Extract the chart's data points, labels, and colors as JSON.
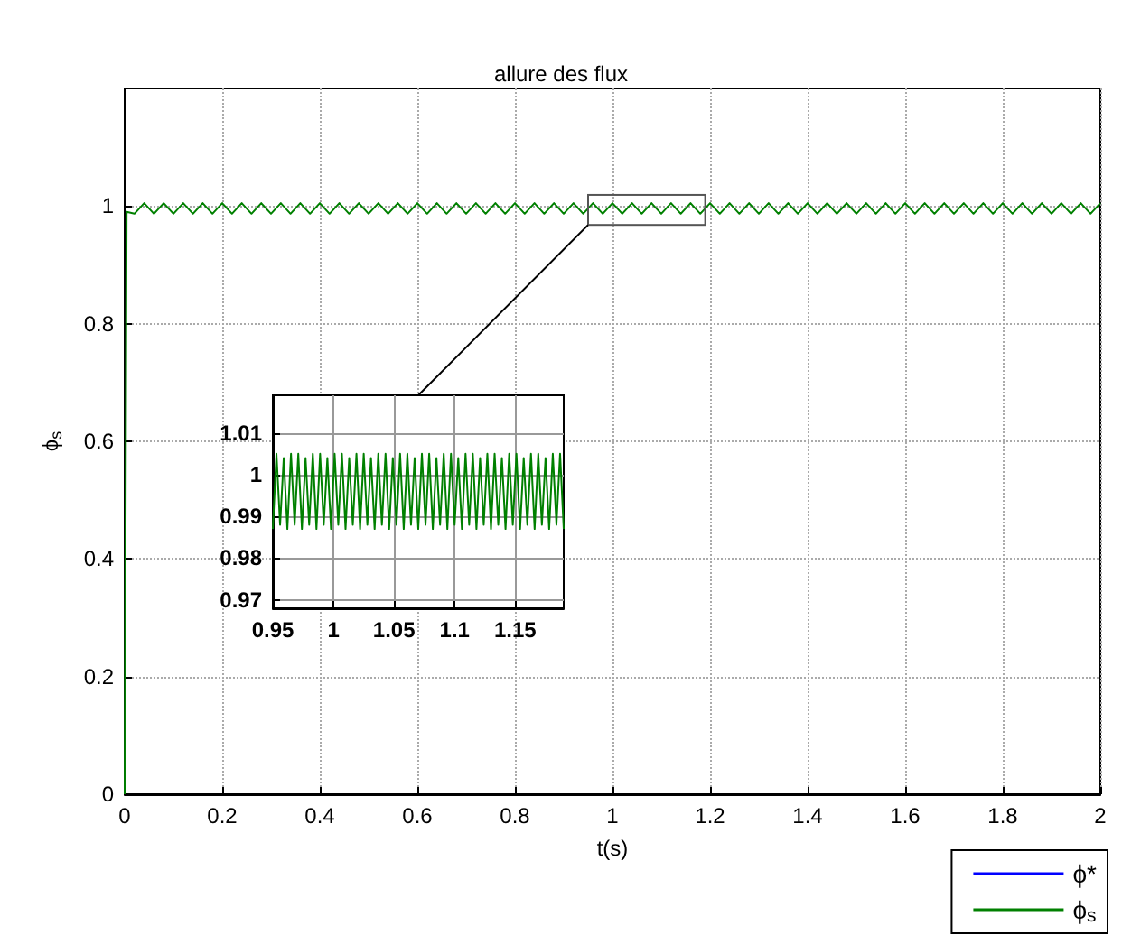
{
  "chart_data": [
    {
      "type": "line",
      "title": "allure des flux",
      "xlabel": "t(s)",
      "ylabel": "ϕ$_{s}$",
      "xlim": [
        0,
        2
      ],
      "ylim": [
        0,
        1.2
      ],
      "xticks": [
        0,
        0.2,
        0.4,
        0.6,
        0.8,
        1,
        1.2,
        1.4,
        1.6,
        1.8,
        2
      ],
      "yticks": [
        0,
        0.2,
        0.4,
        0.6,
        0.8,
        1
      ],
      "grid": true,
      "legend": "bottom right",
      "series": [
        {
          "name": "ϕ*",
          "color": "#0000ff"
        },
        {
          "name": "ϕ$_{s}$",
          "color": "#008000",
          "x": [
            0,
            0.004,
            0.02,
            0.04,
            0.06,
            0.08,
            0.1,
            0.12,
            0.14,
            0.16,
            0.18,
            0.2,
            0.22,
            0.24,
            0.26,
            0.28,
            0.3,
            0.32,
            0.34,
            0.36,
            0.38,
            0.4,
            0.42,
            0.44,
            0.46,
            0.48,
            0.5,
            0.52,
            0.54,
            0.56,
            0.58,
            0.6,
            0.62,
            0.64,
            0.66,
            0.68,
            0.7,
            0.72,
            0.74,
            0.76,
            0.78,
            0.8,
            0.82,
            0.84,
            0.86,
            0.88,
            0.9,
            0.92,
            0.94,
            0.96,
            0.98,
            1,
            1.02,
            1.04,
            1.06,
            1.08,
            1.1,
            1.12,
            1.14,
            1.16,
            1.18,
            1.2,
            1.22,
            1.24,
            1.26,
            1.28,
            1.3,
            1.32,
            1.34,
            1.36,
            1.38,
            1.4,
            1.42,
            1.44,
            1.46,
            1.48,
            1.5,
            1.52,
            1.54,
            1.56,
            1.58,
            1.6,
            1.62,
            1.64,
            1.66,
            1.68,
            1.7,
            1.72,
            1.74,
            1.76,
            1.78,
            1.8,
            1.82,
            1.84,
            1.86,
            1.88,
            1.9,
            1.92,
            1.94,
            1.96,
            1.98,
            2
          ],
          "values": [
            0,
            0.99,
            0.987,
            1.005,
            0.987,
            1.005,
            0.987,
            1.005,
            0.987,
            1.005,
            0.987,
            1.005,
            0.987,
            1.005,
            0.987,
            1.005,
            0.987,
            1.005,
            0.987,
            1.005,
            0.987,
            1.005,
            0.987,
            1.005,
            0.987,
            1.005,
            0.987,
            1.005,
            0.987,
            1.005,
            0.987,
            1.005,
            0.987,
            1.005,
            0.987,
            1.005,
            0.987,
            1.005,
            0.987,
            1.005,
            0.987,
            1.005,
            0.987,
            1.005,
            0.987,
            1.005,
            0.987,
            1.005,
            0.987,
            1.005,
            0.987,
            1.005,
            0.987,
            1.005,
            0.987,
            1.005,
            0.987,
            1.005,
            0.987,
            1.005,
            0.987,
            1.005,
            0.987,
            1.005,
            0.987,
            1.005,
            0.987,
            1.005,
            0.987,
            1.005,
            0.987,
            1.005,
            0.987,
            1.005,
            0.987,
            1.005,
            0.987,
            1.005,
            0.987,
            1.005,
            0.987,
            1.005,
            0.987,
            1.005,
            0.987,
            1.005,
            0.987,
            1.005,
            0.987,
            1.005,
            0.987,
            1.005,
            0.987,
            1.005,
            0.987,
            1.005,
            0.987,
            1.005,
            0.987,
            1.005,
            0.987,
            1.005
          ]
        }
      ]
    },
    {
      "type": "line",
      "xlim": [
        0.95,
        1.19
      ],
      "ylim": [
        0.968,
        1.019
      ],
      "xticks": [
        0.95,
        1,
        1.05,
        1.1,
        1.15
      ],
      "yticks": [
        0.97,
        0.98,
        0.99,
        1,
        1.01
      ],
      "grid": true,
      "series": [
        {
          "color": "#008000",
          "x": [
            0.95,
            0.953,
            0.956,
            0.959,
            0.962,
            0.965,
            0.968,
            0.971,
            0.974,
            0.977,
            0.98,
            0.983,
            0.986,
            0.989,
            0.992,
            0.995,
            0.998,
            1.001,
            1.004,
            1.007,
            1.01,
            1.013,
            1.016,
            1.019,
            1.022,
            1.025,
            1.028,
            1.031,
            1.034,
            1.037,
            1.04,
            1.043,
            1.046,
            1.049,
            1.052,
            1.055,
            1.058,
            1.061,
            1.064,
            1.067,
            1.07,
            1.073,
            1.076,
            1.079,
            1.082,
            1.085,
            1.088,
            1.091,
            1.094,
            1.097,
            1.1,
            1.103,
            1.106,
            1.109,
            1.112,
            1.115,
            1.118,
            1.121,
            1.124,
            1.127,
            1.13,
            1.133,
            1.136,
            1.139,
            1.142,
            1.145,
            1.148,
            1.151,
            1.154,
            1.157,
            1.16,
            1.163,
            1.166,
            1.169,
            1.172,
            1.175,
            1.178,
            1.181,
            1.184,
            1.187,
            1.19
          ],
          "values": [
            0.987,
            1.005,
            0.988,
            1.004,
            0.987,
            1.005,
            0.988,
            1.005,
            0.987,
            1.004,
            0.988,
            1.005,
            0.987,
            1.005,
            0.988,
            1.004,
            0.987,
            1.005,
            0.988,
            1.005,
            0.987,
            1.004,
            0.988,
            1.005,
            0.987,
            1.005,
            0.988,
            1.004,
            0.987,
            1.005,
            0.988,
            1.005,
            0.987,
            1.004,
            0.988,
            1.005,
            0.987,
            1.005,
            0.988,
            1.004,
            0.987,
            1.005,
            0.988,
            1.005,
            0.987,
            1.004,
            0.988,
            1.005,
            0.987,
            1.005,
            0.988,
            1.004,
            0.987,
            1.005,
            0.988,
            1.005,
            0.987,
            1.004,
            0.988,
            1.005,
            0.987,
            1.005,
            0.988,
            1.004,
            0.987,
            1.005,
            0.988,
            1.005,
            0.987,
            1.004,
            0.988,
            1.005,
            0.987,
            1.005,
            0.988,
            1.004,
            0.987,
            1.005,
            0.988,
            1.005,
            0.987
          ]
        }
      ]
    }
  ]
}
